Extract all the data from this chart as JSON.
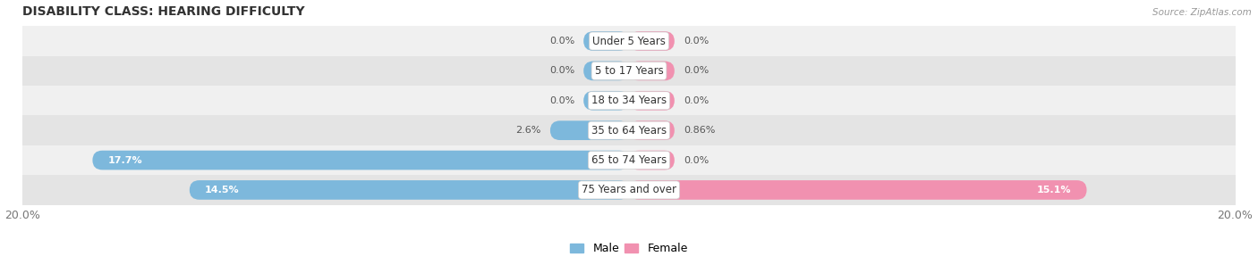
{
  "title": "DISABILITY CLASS: HEARING DIFFICULTY",
  "source_text": "Source: ZipAtlas.com",
  "categories": [
    "Under 5 Years",
    "5 to 17 Years",
    "18 to 34 Years",
    "35 to 64 Years",
    "65 to 74 Years",
    "75 Years and over"
  ],
  "male_values": [
    0.0,
    0.0,
    0.0,
    2.6,
    17.7,
    14.5
  ],
  "female_values": [
    0.0,
    0.0,
    0.0,
    0.86,
    0.0,
    15.1
  ],
  "male_labels": [
    "0.0%",
    "0.0%",
    "0.0%",
    "2.6%",
    "17.7%",
    "14.5%"
  ],
  "female_labels": [
    "0.0%",
    "0.0%",
    "0.0%",
    "0.86%",
    "0.0%",
    "15.1%"
  ],
  "male_color": "#7db8dc",
  "female_color": "#f191b0",
  "row_bg_light": "#f0f0f0",
  "row_bg_dark": "#e4e4e4",
  "x_min": -20.0,
  "x_max": 20.0,
  "x_tick_labels": [
    "20.0%",
    "20.0%"
  ],
  "min_bar_width": 1.5,
  "title_fontsize": 10,
  "label_fontsize": 8,
  "category_fontsize": 8.5,
  "tick_fontsize": 9,
  "legend_fontsize": 9,
  "bar_height": 0.65,
  "figsize": [
    14.06,
    3.06
  ],
  "dpi": 100
}
